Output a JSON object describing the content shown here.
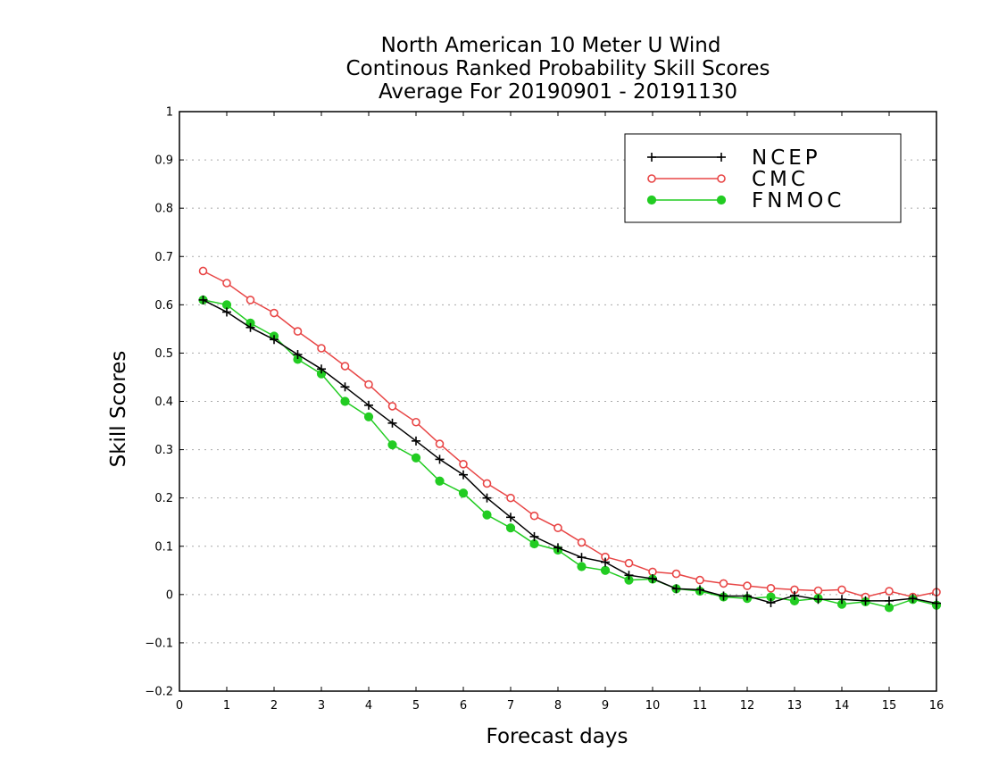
{
  "chart_data": {
    "type": "line",
    "title_lines": [
      "North American 10 Meter U Wind",
      "Continous Ranked Probability Skill Scores",
      "Average For 20190901 - 20191130"
    ],
    "xlabel": "Forecast days",
    "ylabel": "Skill Scores",
    "xlim": [
      0,
      16
    ],
    "ylim": [
      -0.2,
      1
    ],
    "xticks": [
      "0",
      "1",
      "2",
      "3",
      "4",
      "5",
      "6",
      "7",
      "8",
      "9",
      "10",
      "11",
      "12",
      "13",
      "14",
      "15",
      "16"
    ],
    "yticks": [
      "−0.2",
      "−0.1",
      "0",
      "0.1",
      "0.2",
      "0.3",
      "0.4",
      "0.5",
      "0.6",
      "0.7",
      "0.8",
      "0.9",
      "1"
    ],
    "yticks_values": [
      -0.2,
      -0.1,
      0,
      0.1,
      0.2,
      0.3,
      0.4,
      0.5,
      0.6,
      0.7,
      0.8,
      0.9,
      1
    ],
    "grid": true,
    "legend_position": "top-right",
    "x": [
      0.5,
      1,
      1.5,
      2,
      2.5,
      3,
      3.5,
      4,
      4.5,
      5,
      5.5,
      6,
      6.5,
      7,
      7.5,
      8,
      8.5,
      9,
      9.5,
      10,
      10.5,
      11,
      11.5,
      12,
      12.5,
      13,
      13.5,
      14,
      14.5,
      15,
      15.5,
      16
    ],
    "series": [
      {
        "name": "NCEP",
        "color": "#000000",
        "marker": "plus",
        "values": [
          0.61,
          0.585,
          0.553,
          0.528,
          0.497,
          0.467,
          0.43,
          0.392,
          0.355,
          0.318,
          0.28,
          0.248,
          0.2,
          0.16,
          0.12,
          0.097,
          0.077,
          0.067,
          0.04,
          0.033,
          0.012,
          0.01,
          -0.003,
          -0.003,
          -0.017,
          -0.002,
          -0.01,
          -0.01,
          -0.013,
          -0.013,
          -0.008,
          -0.018
        ]
      },
      {
        "name": "CMC",
        "color": "#e84646",
        "marker": "open-circle",
        "values": [
          0.67,
          0.645,
          0.61,
          0.583,
          0.545,
          0.51,
          0.473,
          0.435,
          0.39,
          0.357,
          0.312,
          0.27,
          0.23,
          0.2,
          0.163,
          0.138,
          0.108,
          0.078,
          0.065,
          0.047,
          0.043,
          0.03,
          0.023,
          0.018,
          0.013,
          0.01,
          0.008,
          0.01,
          -0.005,
          0.007,
          -0.005,
          0.005
        ]
      },
      {
        "name": "FNMOC",
        "color": "#22cc22",
        "marker": "filled-circle",
        "values": [
          0.61,
          0.6,
          0.562,
          0.535,
          0.487,
          0.457,
          0.4,
          0.368,
          0.31,
          0.283,
          0.235,
          0.21,
          0.165,
          0.138,
          0.105,
          0.092,
          0.058,
          0.05,
          0.03,
          0.032,
          0.012,
          0.007,
          -0.005,
          -0.008,
          -0.005,
          -0.013,
          -0.008,
          -0.02,
          -0.015,
          -0.027,
          -0.01,
          -0.022
        ]
      }
    ]
  }
}
